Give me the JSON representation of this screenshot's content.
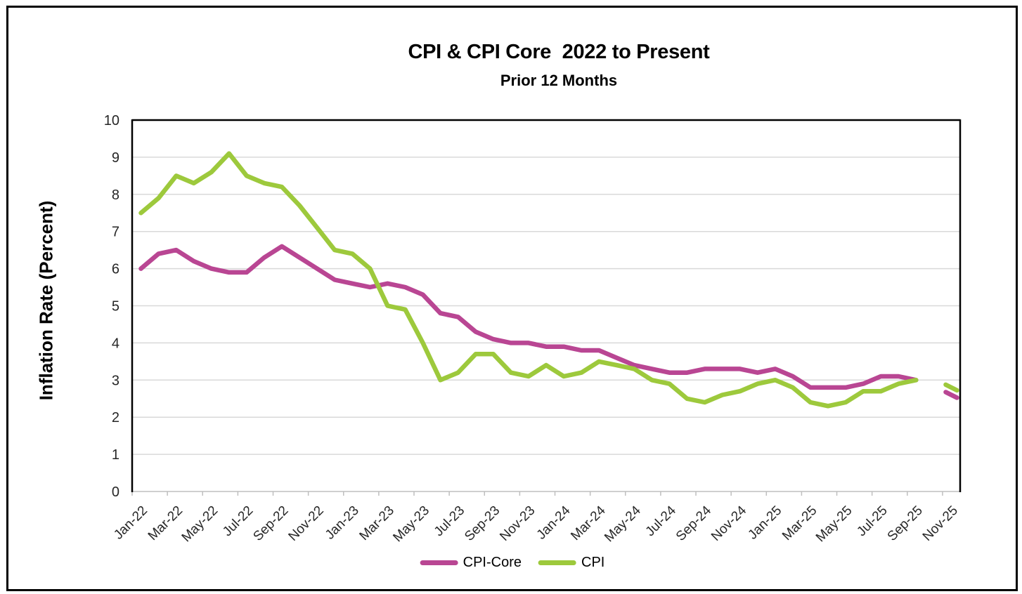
{
  "chart_data": {
    "type": "line",
    "title": "CPI & CPI Core  2022 to Present",
    "subtitle": "Prior 12 Months",
    "y_axis_title": "Inflation Rate (Percent)",
    "ylim": [
      0,
      10
    ],
    "y_ticks": [
      0,
      1,
      2,
      3,
      4,
      5,
      6,
      7,
      8,
      9,
      10
    ],
    "grid": "horizontal",
    "legend_position": "bottom",
    "x_categories": [
      "Jan-22",
      "Feb-22",
      "Mar-22",
      "Apr-22",
      "May-22",
      "Jun-22",
      "Jul-22",
      "Aug-22",
      "Sep-22",
      "Oct-22",
      "Nov-22",
      "Dec-22",
      "Jan-23",
      "Feb-23",
      "Mar-23",
      "Apr-23",
      "May-23",
      "Jun-23",
      "Jul-23",
      "Aug-23",
      "Sep-23",
      "Oct-23",
      "Nov-23",
      "Dec-23",
      "Jan-24",
      "Feb-24",
      "Mar-24",
      "Apr-24",
      "May-24",
      "Jun-24",
      "Jul-24",
      "Aug-24",
      "Sep-24",
      "Oct-24",
      "Nov-24",
      "Dec-24",
      "Jan-25",
      "Feb-25",
      "Mar-25",
      "Apr-25",
      "May-25",
      "Jun-25",
      "Jul-25",
      "Aug-25",
      "Sep-25",
      "Oct-25",
      "Nov-25"
    ],
    "x_tick_labels": [
      "Jan-22",
      "Mar-22",
      "May-22",
      "Jul-22",
      "Sep-22",
      "Nov-22",
      "Jan-23",
      "Mar-23",
      "May-23",
      "Jul-23",
      "Sep-23",
      "Nov-23",
      "Jan-24",
      "Mar-24",
      "May-24",
      "Jul-24",
      "Sep-24",
      "Nov-24",
      "Jan-25",
      "Mar-25",
      "May-25",
      "Jul-25",
      "Sep-25",
      "Nov-25"
    ],
    "series": [
      {
        "name": "CPI-Core",
        "color": "#B94693",
        "values": [
          6.0,
          6.4,
          6.5,
          6.2,
          6.0,
          5.9,
          5.9,
          6.3,
          6.6,
          6.3,
          6.0,
          5.7,
          5.6,
          5.5,
          5.6,
          5.5,
          5.3,
          4.8,
          4.7,
          4.3,
          4.1,
          4.0,
          4.0,
          3.9,
          3.9,
          3.8,
          3.8,
          3.6,
          3.4,
          3.3,
          3.2,
          3.2,
          3.3,
          3.3,
          3.3,
          3.2,
          3.3,
          3.1,
          2.8,
          2.8,
          2.8,
          2.9,
          3.1,
          3.1,
          3.0,
          null,
          2.6
        ]
      },
      {
        "name": "CPI",
        "color": "#9DC93C",
        "values": [
          7.5,
          7.9,
          8.5,
          8.3,
          8.6,
          9.1,
          8.5,
          8.3,
          8.2,
          7.7,
          7.1,
          6.5,
          6.4,
          6.0,
          5.0,
          4.9,
          4.0,
          3.0,
          3.2,
          3.7,
          3.7,
          3.2,
          3.1,
          3.4,
          3.1,
          3.2,
          3.5,
          3.4,
          3.3,
          3.0,
          2.9,
          2.5,
          2.4,
          2.6,
          2.7,
          2.9,
          3.0,
          2.8,
          2.4,
          2.3,
          2.4,
          2.7,
          2.7,
          2.9,
          3.0,
          null,
          2.8
        ]
      }
    ],
    "gridline_color": "#D9D9D9",
    "axis_color": "#BFBFBF",
    "border_color": "#000000",
    "tick_label_color": "#262626"
  }
}
